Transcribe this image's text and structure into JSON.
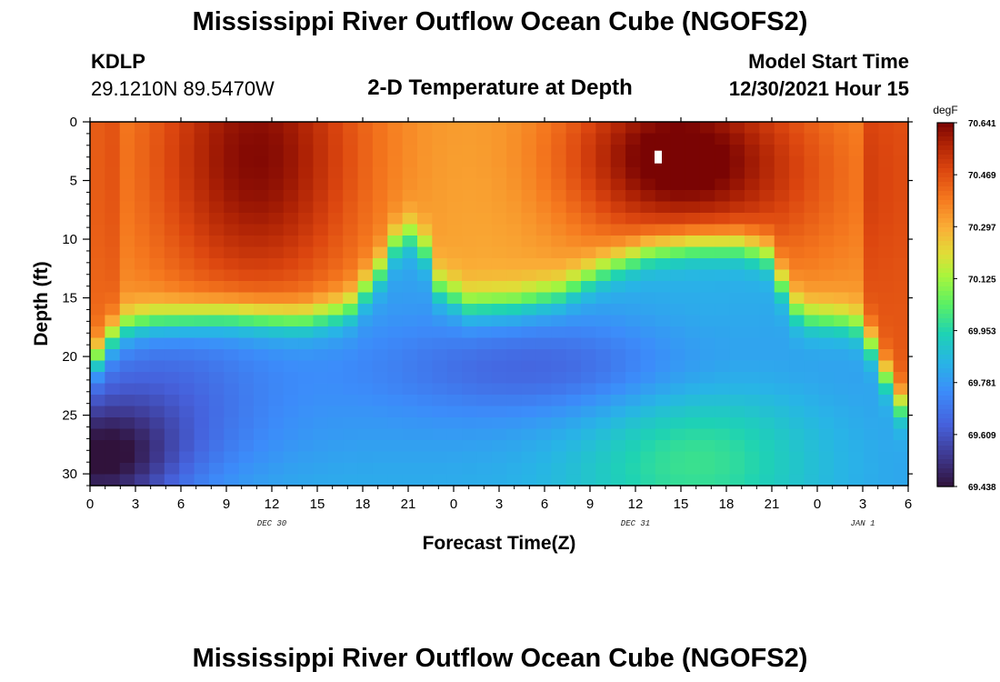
{
  "header": {
    "title": "Mississippi River Outflow Ocean Cube (NGOFS2)",
    "station_id": "KDLP",
    "station_coords": "29.1210N  89.5470W",
    "panel_title": "2-D Temperature at Depth",
    "model_start_label": "Model Start Time",
    "model_start_value": "12/30/2021 Hour 15"
  },
  "footer": {
    "title": "Mississippi River Outflow Ocean Cube (NGOFS2)"
  },
  "chart_data": {
    "type": "heatmap",
    "title": "2-D Temperature at Depth",
    "xlabel": "Forecast Time(Z)",
    "ylabel": "Depth (ft)",
    "x_range_hours": [
      0,
      54
    ],
    "y_range_ft": [
      0,
      31
    ],
    "y_inverted": true,
    "x_tick_labels": [
      "0",
      "3",
      "6",
      "9",
      "12",
      "15",
      "18",
      "21",
      "0",
      "3",
      "6",
      "9",
      "12",
      "15",
      "18",
      "21",
      "0",
      "3",
      "6"
    ],
    "y_tick_labels": [
      "0",
      "5",
      "10",
      "15",
      "20",
      "25",
      "30"
    ],
    "date_labels": [
      {
        "text": "DEC 30",
        "hour": 12
      },
      {
        "text": "DEC 31",
        "hour": 36
      },
      {
        "text": "JAN 1",
        "hour": 51
      }
    ],
    "colorbar": {
      "units": "degF",
      "labels": [
        "70.641",
        "70.469",
        "70.297",
        "70.125",
        "69.953",
        "69.781",
        "69.609",
        "69.438"
      ],
      "min": 69.438,
      "max": 70.641
    },
    "grid_cols": 55,
    "grid_rows": 32,
    "thermocline_depth_ft": [
      [
        0,
        21
      ],
      [
        1,
        19
      ],
      [
        2,
        17.5
      ],
      [
        4,
        16.8
      ],
      [
        9,
        16.5
      ],
      [
        14,
        16.8
      ],
      [
        17,
        16
      ],
      [
        19,
        13
      ],
      [
        20,
        10.5
      ],
      [
        21,
        9.5
      ],
      [
        22,
        10.5
      ],
      [
        23,
        14
      ],
      [
        25,
        15.5
      ],
      [
        28,
        15.3
      ],
      [
        31,
        14.5
      ],
      [
        34,
        12.5
      ],
      [
        37,
        11
      ],
      [
        40,
        10.5
      ],
      [
        43,
        10.5
      ],
      [
        45,
        11.5
      ],
      [
        46,
        15
      ],
      [
        47,
        16.5
      ],
      [
        50,
        17
      ],
      [
        51,
        17.5
      ],
      [
        52,
        20
      ],
      [
        53,
        23
      ],
      [
        54,
        25
      ]
    ],
    "warm_cores": [
      {
        "hour": 11,
        "depth_ft": 3,
        "value": 70.6
      },
      {
        "hour": 38,
        "depth_ft": 3,
        "value": 70.64
      }
    ],
    "cold_cores": [
      {
        "hour": 0.5,
        "depth_ft": 29,
        "value": 69.44
      },
      {
        "hour": 31,
        "depth_ft": 21,
        "value": 69.58
      }
    ],
    "marker": {
      "hour": 37.5,
      "depth_ft": 3
    }
  }
}
